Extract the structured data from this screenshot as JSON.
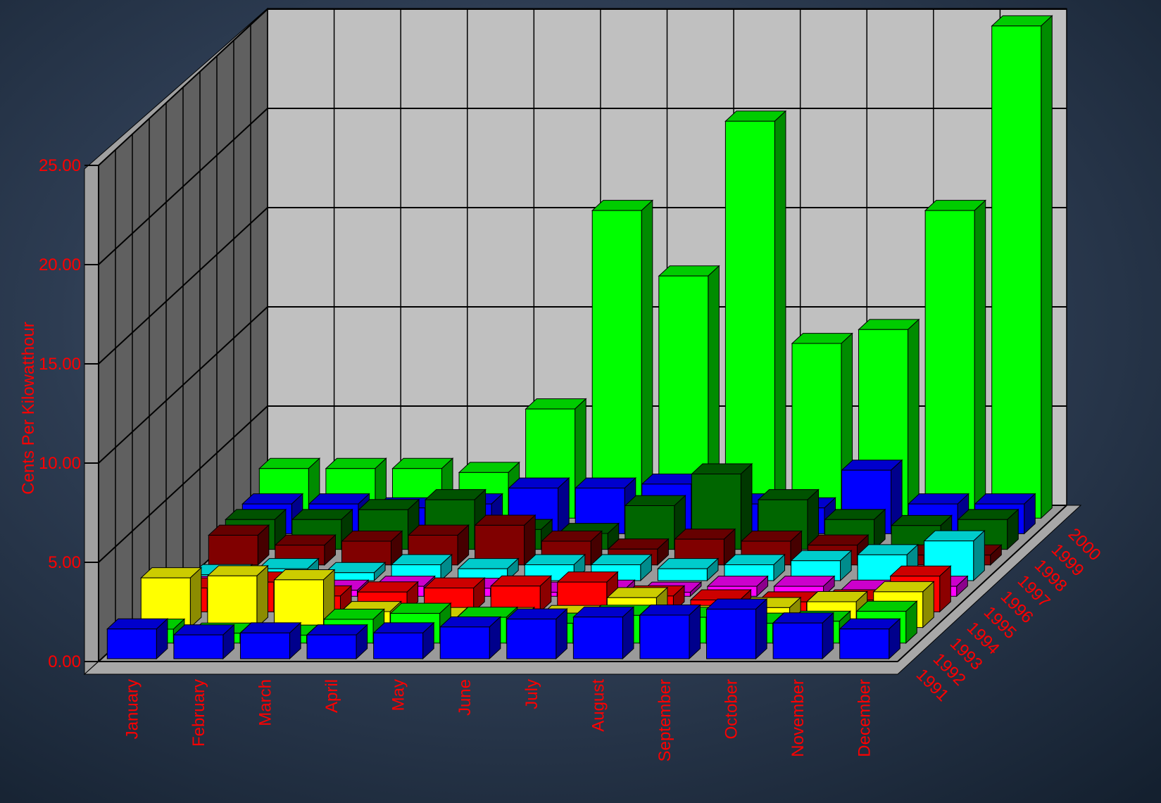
{
  "chart_data": {
    "type": "bar3d",
    "y_label": "Cents Per Kilowatthour",
    "categories": [
      "January",
      "February",
      "March",
      "April",
      "May",
      "June",
      "July",
      "August",
      "September",
      "October",
      "November",
      "December"
    ],
    "series": [
      {
        "name": "1991",
        "color": "#0000ff",
        "values": [
          1.5,
          1.2,
          1.3,
          1.2,
          1.3,
          1.6,
          2.0,
          2.1,
          2.2,
          2.5,
          1.8,
          1.5
        ]
      },
      {
        "name": "1992",
        "color": "#00ff00",
        "values": [
          0.7,
          0.5,
          0.4,
          1.2,
          1.5,
          1.3,
          1.0,
          1.4,
          1.3,
          1.0,
          1.1,
          1.6
        ]
      },
      {
        "name": "1993",
        "color": "#ffff00",
        "values": [
          2.5,
          2.6,
          2.4,
          0.8,
          0.5,
          0.5,
          0.6,
          1.5,
          0.6,
          1.0,
          1.3,
          1.8
        ]
      },
      {
        "name": "1994",
        "color": "#ff0000",
        "values": [
          1.2,
          1.5,
          0.8,
          1.0,
          1.2,
          1.3,
          1.5,
          0.8,
          0.6,
          0.5,
          0.6,
          1.8
        ]
      },
      {
        "name": "1995",
        "color": "#ff00ff",
        "values": [
          0.5,
          0.3,
          0.3,
          0.5,
          0.4,
          0.2,
          0.3,
          0.2,
          0.5,
          0.5,
          0.3,
          0.5
        ]
      },
      {
        "name": "1996",
        "color": "#00ffff",
        "values": [
          0.3,
          0.6,
          0.4,
          0.8,
          0.6,
          0.8,
          0.8,
          0.6,
          0.8,
          1.0,
          1.3,
          2.0
        ]
      },
      {
        "name": "1997",
        "color": "#800000",
        "values": [
          1.5,
          1.0,
          1.2,
          1.5,
          2.0,
          1.2,
          0.8,
          1.3,
          1.2,
          1.0,
          0.5,
          0.5
        ]
      },
      {
        "name": "1998",
        "color": "#006600",
        "values": [
          1.5,
          1.5,
          2.0,
          2.5,
          1.0,
          0.8,
          2.2,
          3.8,
          2.5,
          1.5,
          1.2,
          1.5
        ]
      },
      {
        "name": "1999",
        "color": "#0000ff",
        "values": [
          1.5,
          1.5,
          1.3,
          1.5,
          2.3,
          2.3,
          2.5,
          1.5,
          1.3,
          3.2,
          1.5,
          1.5
        ]
      },
      {
        "name": "2000",
        "color": "#00ff00",
        "values": [
          2.5,
          2.5,
          2.5,
          2.3,
          5.5,
          15.5,
          12.2,
          20.0,
          8.8,
          9.5,
          15.5,
          24.8
        ]
      }
    ],
    "ylim": [
      0,
      25
    ],
    "yticks": [
      {
        "value": 0,
        "label": "0.00"
      },
      {
        "value": 5,
        "label": "5.00"
      },
      {
        "value": 10,
        "label": "10.00"
      },
      {
        "value": 15,
        "label": "15.00"
      },
      {
        "value": 20,
        "label": "20.00"
      },
      {
        "value": 25,
        "label": "25.00"
      }
    ],
    "grid": true,
    "label_color": "#ff0000"
  }
}
